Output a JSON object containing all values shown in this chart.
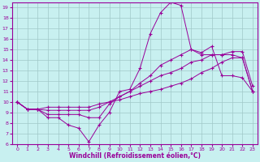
{
  "xlabel": "Windchill (Refroidissement éolien,°C)",
  "background_color": "#c8f0f0",
  "grid_color": "#a0c8c8",
  "line_color": "#990099",
  "xlim": [
    -0.5,
    23.5
  ],
  "ylim": [
    6,
    19.5
  ],
  "xticks": [
    0,
    1,
    2,
    3,
    4,
    5,
    6,
    7,
    8,
    9,
    10,
    11,
    12,
    13,
    14,
    15,
    16,
    17,
    18,
    19,
    20,
    21,
    22,
    23
  ],
  "yticks": [
    6,
    7,
    8,
    9,
    10,
    11,
    12,
    13,
    14,
    15,
    16,
    17,
    18,
    19
  ],
  "series": [
    [
      10.0,
      9.3,
      9.3,
      8.5,
      8.5,
      7.8,
      7.5,
      6.2,
      7.8,
      9.0,
      11.0,
      11.2,
      13.2,
      16.5,
      18.5,
      19.5,
      19.2,
      15.0,
      14.7,
      15.3,
      12.5,
      12.5,
      12.3,
      11.0
    ],
    [
      10.0,
      9.3,
      9.3,
      8.8,
      8.8,
      8.8,
      8.8,
      8.5,
      8.5,
      9.8,
      10.5,
      11.0,
      11.8,
      12.5,
      13.5,
      14.0,
      14.5,
      15.0,
      14.5,
      14.5,
      14.5,
      14.5,
      14.2,
      11.0
    ],
    [
      10.0,
      9.3,
      9.3,
      9.2,
      9.2,
      9.2,
      9.2,
      9.2,
      9.5,
      10.0,
      10.5,
      11.0,
      11.5,
      12.0,
      12.5,
      12.8,
      13.2,
      13.8,
      14.0,
      14.5,
      14.5,
      14.8,
      14.8,
      11.5
    ],
    [
      10.0,
      9.3,
      9.3,
      9.5,
      9.5,
      9.5,
      9.5,
      9.5,
      9.8,
      10.0,
      10.2,
      10.5,
      10.8,
      11.0,
      11.2,
      11.5,
      11.8,
      12.2,
      12.8,
      13.2,
      13.8,
      14.2,
      14.2,
      11.0
    ]
  ]
}
